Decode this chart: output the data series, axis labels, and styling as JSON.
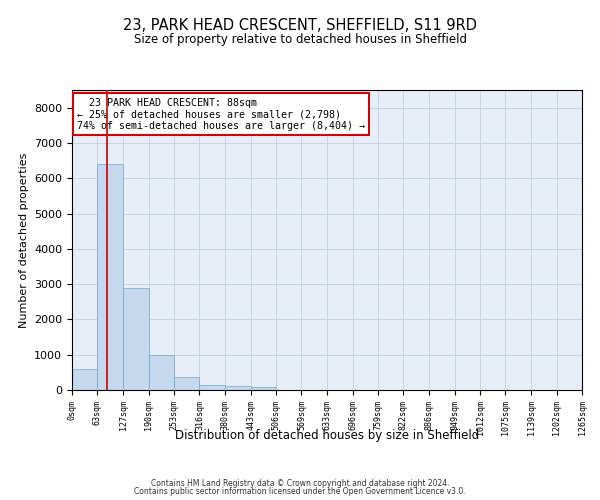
{
  "title": "23, PARK HEAD CRESCENT, SHEFFIELD, S11 9RD",
  "subtitle": "Size of property relative to detached houses in Sheffield",
  "xlabel": "Distribution of detached houses by size in Sheffield",
  "ylabel": "Number of detached properties",
  "bin_edges": [
    0,
    63,
    127,
    190,
    253,
    316,
    380,
    443,
    506,
    569,
    633,
    696,
    759,
    822,
    886,
    949,
    1012,
    1075,
    1139,
    1202,
    1265
  ],
  "bar_heights": [
    600,
    6400,
    2900,
    1000,
    380,
    150,
    120,
    90,
    0,
    0,
    0,
    0,
    0,
    0,
    0,
    0,
    0,
    0,
    0,
    0
  ],
  "bar_color": "#c5d8ed",
  "bar_edge_color": "#6fa8cc",
  "property_size": 88,
  "property_name": "23 PARK HEAD CRESCENT: 88sqm",
  "pct_smaller": "25% of detached houses are smaller (2,798)",
  "pct_larger": "74% of semi-detached houses are larger (8,404)",
  "annotation_box_color": "#cc0000",
  "vline_color": "#cc0000",
  "ylim": [
    0,
    8500
  ],
  "yticks": [
    0,
    1000,
    2000,
    3000,
    4000,
    5000,
    6000,
    7000,
    8000
  ],
  "grid_color": "#c8d4e4",
  "background_color": "#e8eef8",
  "footer_line1": "Contains HM Land Registry data © Crown copyright and database right 2024.",
  "footer_line2": "Contains public sector information licensed under the Open Government Licence v3.0."
}
